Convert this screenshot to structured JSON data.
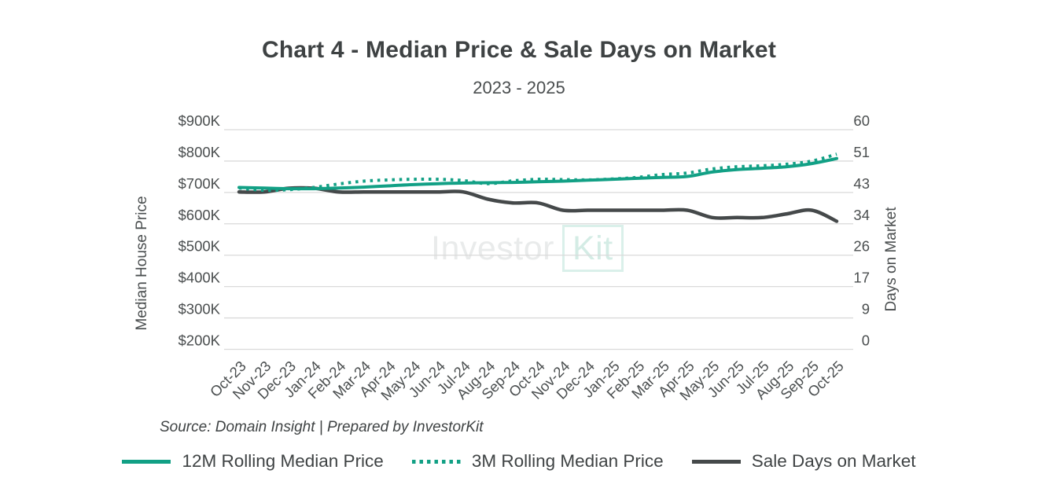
{
  "header": {
    "title": "Chart 4 - Median Price & Sale Days on Market",
    "subtitle": "2023 - 2025"
  },
  "watermark": {
    "part1": "Investor",
    "part2": "Kit"
  },
  "source": "Source: Domain Insight | Prepared by InvestorKit",
  "legend": [
    {
      "label": "12M Rolling Median Price",
      "style": "solid-teal"
    },
    {
      "label": "3M Rolling Median Price",
      "style": "dotted-teal"
    },
    {
      "label": "Sale Days on Market",
      "style": "solid-dark"
    }
  ],
  "colors": {
    "teal": "#12A085",
    "dark": "#45494A",
    "grid": "#DADADA",
    "axis_text": "#4A4E4F",
    "title_text": "#3E4243"
  },
  "chart_data": {
    "type": "line",
    "title": "Chart 4 - Median Price & Sale Days on Market",
    "subtitle": "2023 - 2025",
    "grid": true,
    "grid_color": "#DADADA",
    "legend_position": "bottom",
    "categories": [
      "Oct-23",
      "Nov-23",
      "Dec-23",
      "Jan-24",
      "Feb-24",
      "Mar-24",
      "Apr-24",
      "May-24",
      "Jun-24",
      "Jul-24",
      "Aug-24",
      "Sep-24",
      "Oct-24",
      "Nov-24",
      "Dec-24",
      "Jan-25",
      "Feb-25",
      "Mar-25",
      "Apr-25",
      "May-25",
      "Jun-25",
      "Jul-25",
      "Aug-25",
      "Sep-25",
      "Oct-25"
    ],
    "left_axis": {
      "label": "Median House Price",
      "unit": "$K",
      "min_k": 200,
      "max_k": 900,
      "ticks": [
        "$900K",
        "$800K",
        "$700K",
        "$600K",
        "$500K",
        "$400K",
        "$300K",
        "$200K"
      ]
    },
    "right_axis": {
      "label": "Days on Market",
      "min": 0,
      "max": 60,
      "ticks": [
        "60",
        "51",
        "43",
        "34",
        "26",
        "17",
        "9",
        "0"
      ]
    },
    "series": [
      {
        "id": "12m-rolling-median-price",
        "name": "12M Rolling Median Price",
        "axis": "left",
        "unit": "$K",
        "style": "solid",
        "color": "#12A085",
        "width": 4,
        "draw": 2,
        "values": [
          716,
          714,
          712,
          712,
          714,
          717,
          721,
          725,
          728,
          730,
          731,
          732,
          734,
          736,
          739,
          742,
          745,
          748,
          751,
          765,
          773,
          777,
          782,
          792,
          808
        ]
      },
      {
        "id": "3m-rolling-median-price",
        "name": "3M Rolling Median Price",
        "axis": "left",
        "unit": "$K",
        "style": "dotted",
        "color": "#12A085",
        "width": 4,
        "draw": 3,
        "values": [
          714,
          707,
          709,
          716,
          727,
          736,
          740,
          742,
          742,
          738,
          728,
          737,
          742,
          741,
          740,
          743,
          748,
          757,
          762,
          775,
          782,
          785,
          790,
          800,
          822
        ]
      },
      {
        "id": "sale-days-on-market",
        "name": "Sale Days on Market",
        "axis": "right",
        "unit": "days",
        "style": "solid",
        "color": "#45494A",
        "width": 4.5,
        "draw": 1,
        "values": [
          43,
          43,
          44,
          44,
          43,
          43,
          43,
          43,
          43,
          43,
          41,
          40,
          40,
          38,
          38,
          38,
          38,
          38,
          38,
          36,
          36,
          36,
          37,
          38,
          35
        ]
      }
    ]
  }
}
